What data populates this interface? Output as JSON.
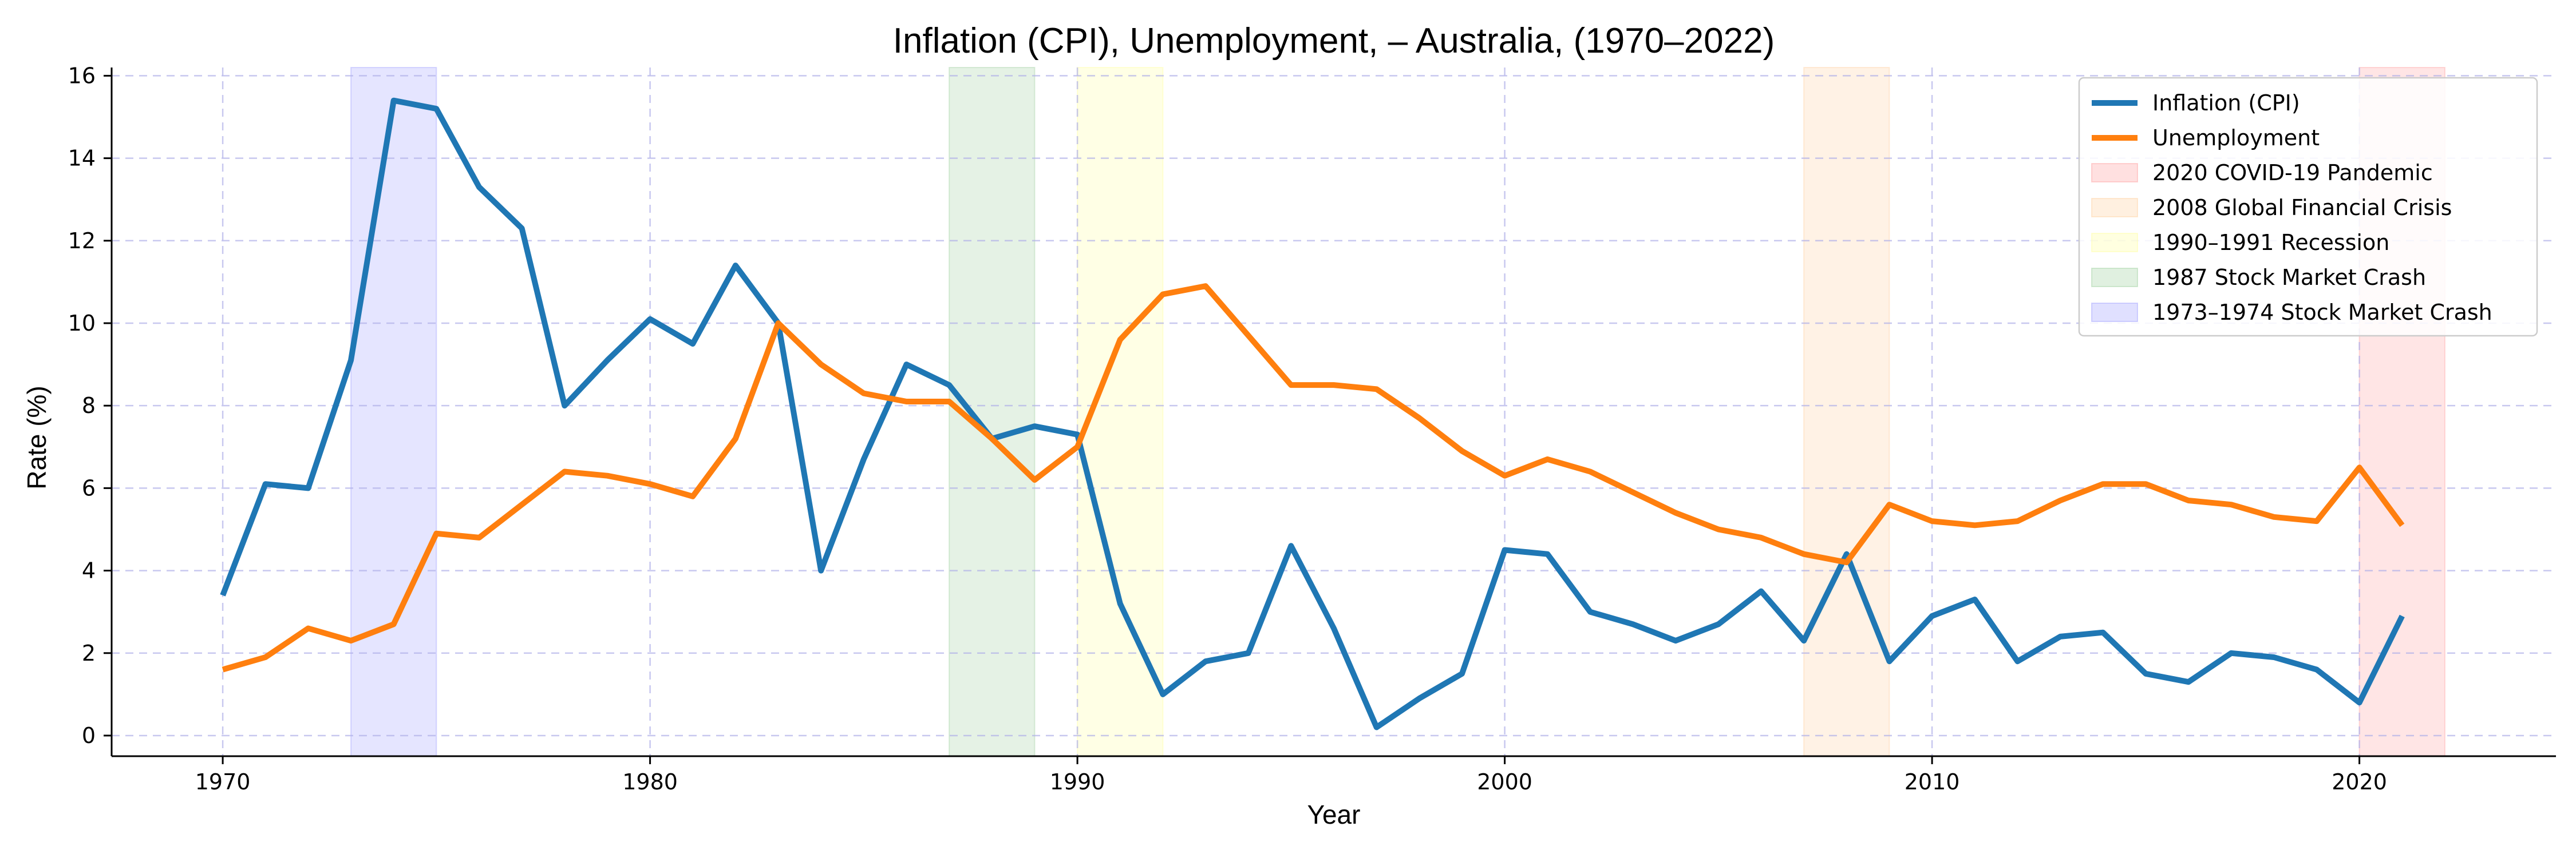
{
  "chart_data": {
    "type": "line",
    "title": "Inflation (CPI), Unemployment, – Australia, (1970–2022)",
    "xlabel": "Year",
    "ylabel": "Rate (%)",
    "xlim": [
      1967.4,
      2024.6
    ],
    "ylim": [
      -0.5,
      16.2
    ],
    "xticks": [
      1970,
      1980,
      1990,
      2000,
      2010,
      2020
    ],
    "yticks": [
      0,
      2,
      4,
      6,
      8,
      10,
      12,
      14,
      16
    ],
    "grid": true,
    "legend_position": "top-right",
    "x": [
      1970,
      1971,
      1972,
      1973,
      1974,
      1975,
      1976,
      1977,
      1978,
      1979,
      1980,
      1981,
      1982,
      1983,
      1984,
      1985,
      1986,
      1987,
      1988,
      1989,
      1990,
      1991,
      1992,
      1993,
      1994,
      1995,
      1996,
      1997,
      1998,
      1999,
      2000,
      2001,
      2002,
      2003,
      2004,
      2005,
      2006,
      2007,
      2008,
      2009,
      2010,
      2011,
      2012,
      2013,
      2014,
      2015,
      2016,
      2017,
      2018,
      2019,
      2020,
      2021
    ],
    "series": [
      {
        "name": "Inflation (CPI)",
        "color": "#1f77b4",
        "values": [
          3.4,
          6.1,
          6.0,
          9.1,
          15.4,
          15.2,
          13.3,
          12.3,
          8.0,
          9.1,
          10.1,
          9.5,
          11.4,
          10.0,
          4.0,
          6.7,
          9.0,
          8.5,
          7.2,
          7.5,
          7.3,
          3.2,
          1.0,
          1.8,
          2.0,
          4.6,
          2.6,
          0.2,
          0.9,
          1.5,
          4.5,
          4.4,
          3.0,
          2.7,
          2.3,
          2.7,
          3.5,
          2.3,
          4.4,
          1.8,
          2.9,
          3.3,
          1.8,
          2.4,
          2.5,
          1.5,
          1.3,
          2.0,
          1.9,
          1.6,
          0.8,
          2.9
        ]
      },
      {
        "name": "Unemployment",
        "color": "#ff7f0e",
        "values": [
          1.6,
          1.9,
          2.6,
          2.3,
          2.7,
          4.9,
          4.8,
          5.6,
          6.4,
          6.3,
          6.1,
          5.8,
          7.2,
          10.0,
          9.0,
          8.3,
          8.1,
          8.1,
          7.2,
          6.2,
          7.0,
          9.6,
          10.7,
          10.9,
          9.7,
          8.5,
          8.5,
          8.4,
          7.7,
          6.9,
          6.3,
          6.7,
          6.4,
          5.9,
          5.4,
          5.0,
          4.8,
          4.4,
          4.2,
          5.6,
          5.2,
          5.1,
          5.2,
          5.7,
          6.1,
          6.1,
          5.7,
          5.6,
          5.3,
          5.2,
          6.5,
          5.1
        ]
      }
    ],
    "shaded_regions": [
      {
        "label": "2020 COVID-19 Pandemic",
        "start": 2020,
        "end": 2022,
        "color": "#ff9999"
      },
      {
        "label": "2008 Global Financial Crisis",
        "start": 2007,
        "end": 2009,
        "color": "#ffcc99"
      },
      {
        "label": "1990–1991 Recession",
        "start": 1990,
        "end": 1992,
        "color": "#ffff99"
      },
      {
        "label": "1987 Stock Market Crash",
        "start": 1987,
        "end": 1989,
        "color": "#99cc99"
      },
      {
        "label": "1973–1974 Stock Market Crash",
        "start": 1973,
        "end": 1975,
        "color": "#9999ff"
      }
    ]
  }
}
